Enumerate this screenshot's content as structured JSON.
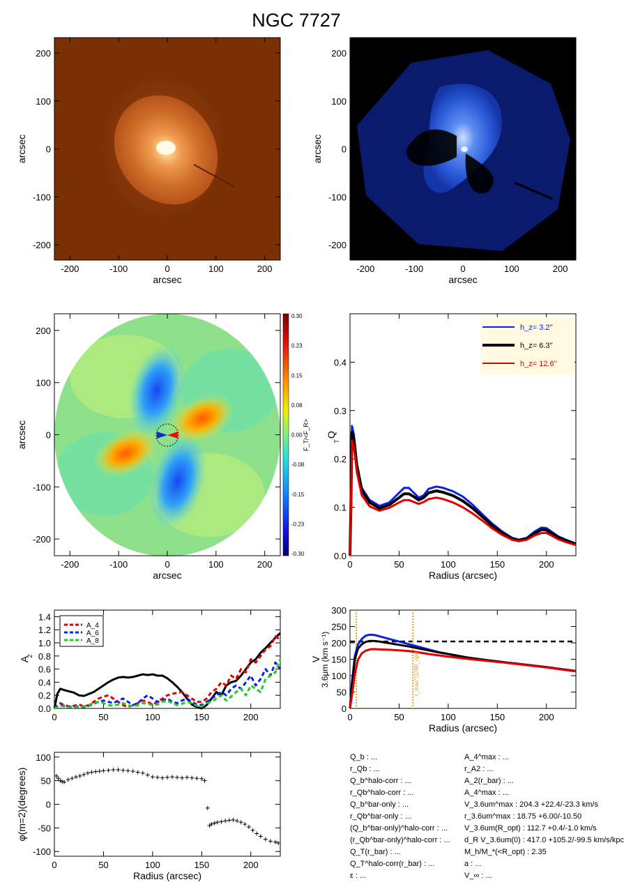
{
  "figure": {
    "title": "NGC 7727"
  },
  "chart_data": [
    {
      "panel": "image-3p6um",
      "type": "heatmap",
      "description": "3.6 micron image (orange colour map)",
      "xlabel": "arcsec",
      "ylabel": "arcsec",
      "xlim": [
        -232,
        232
      ],
      "ylim": [
        -232,
        232
      ],
      "xticks": [
        -200,
        -100,
        0,
        100,
        200
      ],
      "yticks": [
        -200,
        -100,
        0,
        100,
        200
      ],
      "colors": {
        "background": "#7a3003",
        "mid": "#c9611b",
        "core": "#fffbe8"
      }
    },
    {
      "panel": "image-residual",
      "type": "heatmap",
      "description": "residual image (blue colour map)",
      "xlabel": "arcsec",
      "ylabel": "arcsec",
      "xlim": [
        -232,
        232
      ],
      "ylim": [
        -232,
        232
      ],
      "xticks": [
        -200,
        -100,
        0,
        100,
        200
      ],
      "yticks": [
        -200,
        -100,
        0,
        100,
        200
      ],
      "colors": {
        "background": "#000000",
        "mid": "#0a2ba8",
        "core": "#c9dcff"
      }
    },
    {
      "panel": "force-ratio-map",
      "type": "heatmap",
      "xlabel": "arcsec",
      "ylabel": "arcsec",
      "xlim": [
        -232,
        232
      ],
      "ylim": [
        -232,
        232
      ],
      "xticks": [
        -200,
        -100,
        0,
        100,
        200
      ],
      "yticks": [
        -200,
        -100,
        0,
        100,
        200
      ],
      "colorbar": {
        "label": "F_T/<F_R>",
        "ticks": [
          "0.30",
          "0.23",
          "0.15",
          "0.08",
          "0.00",
          "-0.08",
          "-0.15",
          "-0.23",
          "-0.30"
        ]
      }
    },
    {
      "panel": "qt-profile",
      "type": "line",
      "xlabel": "Radius (arcsec)",
      "ylabel": "Q_T",
      "xlim": [
        0,
        230
      ],
      "ylim": [
        0,
        0.5
      ],
      "xticks": [
        0,
        50,
        100,
        150,
        200
      ],
      "yticks": [
        0.0,
        0.1,
        0.2,
        0.3,
        0.4
      ],
      "legend": "top-right",
      "legend_text": [
        "h_z=   3.2''",
        "h_z=   6.3''",
        "h_z=  12.6''"
      ],
      "x": [
        0,
        1,
        2,
        4,
        7,
        12,
        20,
        30,
        40,
        50,
        55,
        60,
        65,
        70,
        75,
        80,
        88,
        95,
        105,
        115,
        125,
        135,
        145,
        155,
        165,
        172,
        180,
        188,
        195,
        200,
        205,
        212,
        220,
        230
      ],
      "series": [
        {
          "name": "h_z=   3.2''",
          "color": "#0a20e8",
          "values": [
            0.0,
            0.12,
            0.268,
            0.25,
            0.19,
            0.14,
            0.115,
            0.103,
            0.11,
            0.13,
            0.14,
            0.14,
            0.13,
            0.12,
            0.125,
            0.138,
            0.143,
            0.14,
            0.133,
            0.122,
            0.105,
            0.085,
            0.066,
            0.05,
            0.037,
            0.033,
            0.037,
            0.05,
            0.058,
            0.057,
            0.05,
            0.04,
            0.033,
            0.025
          ]
        },
        {
          "name": "h_z=   6.3''",
          "color": "#000000",
          "values": [
            0.0,
            0.11,
            0.255,
            0.24,
            0.185,
            0.135,
            0.11,
            0.098,
            0.105,
            0.12,
            0.128,
            0.128,
            0.122,
            0.115,
            0.12,
            0.13,
            0.134,
            0.131,
            0.124,
            0.113,
            0.098,
            0.08,
            0.062,
            0.047,
            0.035,
            0.032,
            0.035,
            0.046,
            0.054,
            0.053,
            0.047,
            0.038,
            0.031,
            0.024
          ]
        },
        {
          "name": "h_z=  12.6''",
          "color": "#e00000",
          "values": [
            0.0,
            0.1,
            0.238,
            0.225,
            0.172,
            0.125,
            0.102,
            0.093,
            0.099,
            0.11,
            0.115,
            0.115,
            0.111,
            0.107,
            0.111,
            0.117,
            0.12,
            0.117,
            0.11,
            0.1,
            0.087,
            0.072,
            0.056,
            0.043,
            0.033,
            0.03,
            0.033,
            0.042,
            0.047,
            0.047,
            0.042,
            0.034,
            0.028,
            0.022
          ]
        }
      ]
    },
    {
      "panel": "fourier-amplitudes",
      "type": "line",
      "xlabel": "",
      "ylabel": "A_2",
      "xlim": [
        0,
        230
      ],
      "ylim": [
        0,
        1.5
      ],
      "xticks": [
        0,
        50,
        100,
        150,
        200
      ],
      "yticks": [
        0.0,
        0.2,
        0.4,
        0.6,
        0.8,
        1.0,
        1.2,
        1.4
      ],
      "legend": "top-left",
      "legend_text": [
        "A_4",
        "A_6",
        "A_8"
      ],
      "x": [
        0,
        3,
        6,
        10,
        15,
        20,
        25,
        30,
        35,
        40,
        45,
        50,
        55,
        60,
        65,
        70,
        75,
        80,
        85,
        90,
        95,
        100,
        105,
        110,
        115,
        120,
        125,
        130,
        135,
        140,
        145,
        150,
        155,
        160,
        165,
        170,
        175,
        180,
        185,
        190,
        195,
        200,
        205,
        210,
        215,
        220,
        225,
        230
      ],
      "series": [
        {
          "name": "A_2",
          "color": "#000000",
          "values": [
            0.0,
            0.22,
            0.3,
            0.28,
            0.26,
            0.24,
            0.2,
            0.19,
            0.22,
            0.25,
            0.3,
            0.35,
            0.4,
            0.44,
            0.47,
            0.48,
            0.47,
            0.48,
            0.5,
            0.52,
            0.51,
            0.52,
            0.5,
            0.5,
            0.46,
            0.4,
            0.33,
            0.25,
            0.15,
            0.06,
            0.02,
            0.0,
            0.05,
            0.15,
            0.25,
            0.2,
            0.35,
            0.4,
            0.42,
            0.5,
            0.6,
            0.7,
            0.75,
            0.85,
            0.92,
            1.0,
            1.08,
            1.15
          ]
        },
        {
          "name": "A_4",
          "color": "#e00000",
          "values": [
            0.0,
            0.05,
            0.08,
            0.05,
            0.03,
            0.04,
            0.06,
            0.03,
            0.05,
            0.1,
            0.15,
            0.18,
            0.2,
            0.15,
            0.1,
            0.05,
            0.02,
            0.05,
            0.08,
            0.12,
            0.1,
            0.06,
            0.1,
            0.15,
            0.2,
            0.22,
            0.24,
            0.25,
            0.2,
            0.15,
            0.1,
            0.1,
            0.15,
            0.25,
            0.3,
            0.4,
            0.35,
            0.5,
            0.45,
            0.6,
            0.55,
            0.75,
            0.7,
            0.8,
            0.9,
            0.95,
            1.1,
            1.05
          ]
        },
        {
          "name": "A_6",
          "color": "#0a20e8",
          "values": [
            0.0,
            0.03,
            0.05,
            0.04,
            0.03,
            0.02,
            0.03,
            0.02,
            0.04,
            0.07,
            0.1,
            0.12,
            0.1,
            0.08,
            0.12,
            0.15,
            0.1,
            0.05,
            0.08,
            0.15,
            0.2,
            0.15,
            0.1,
            0.12,
            0.15,
            0.1,
            0.08,
            0.12,
            0.15,
            0.1,
            0.06,
            0.05,
            0.1,
            0.15,
            0.2,
            0.25,
            0.2,
            0.3,
            0.35,
            0.3,
            0.4,
            0.5,
            0.35,
            0.45,
            0.6,
            0.5,
            0.7,
            0.6
          ]
        },
        {
          "name": "A_8",
          "color": "#22cc22",
          "values": [
            0.0,
            0.02,
            0.04,
            0.03,
            0.02,
            0.02,
            0.02,
            0.03,
            0.05,
            0.08,
            0.1,
            0.08,
            0.05,
            0.04,
            0.06,
            0.08,
            0.05,
            0.03,
            0.05,
            0.08,
            0.07,
            0.05,
            0.06,
            0.1,
            0.12,
            0.08,
            0.05,
            0.07,
            0.1,
            0.08,
            0.04,
            0.03,
            0.08,
            0.1,
            0.15,
            0.2,
            0.12,
            0.18,
            0.25,
            0.3,
            0.2,
            0.35,
            0.3,
            0.25,
            0.45,
            0.5,
            0.55,
            0.75
          ]
        }
      ]
    },
    {
      "panel": "rotation-curve",
      "type": "line",
      "xlabel": "Radius (arcsec)",
      "ylabel": "V_3.6um (km s^-1)",
      "xlim": [
        0,
        230
      ],
      "ylim": [
        0,
        300
      ],
      "xticks": [
        0,
        50,
        100,
        150,
        200
      ],
      "yticks": [
        0,
        50,
        100,
        150,
        200,
        250,
        300
      ],
      "hline": {
        "value": 204.3,
        "color": "#000000",
        "style": "dashed"
      },
      "vlines": [
        {
          "value": 6.5,
          "color": "#e8a020",
          "style": "dotted"
        },
        {
          "value": 64,
          "color": "#e8a020",
          "style": "dotted"
        }
      ],
      "annotation": "r_max^(1/4R_opt)",
      "x": [
        0,
        2,
        5,
        8,
        12,
        16,
        20,
        25,
        30,
        40,
        50,
        60,
        70,
        80,
        90,
        100,
        120,
        140,
        160,
        180,
        200,
        215,
        230
      ],
      "series": [
        {
          "name": "",
          "color": "#0a20e8",
          "values": [
            0,
            80,
            160,
            195,
            212,
            222,
            225,
            224,
            220,
            212,
            204,
            196,
            188,
            180,
            172,
            166,
            155,
            147,
            140,
            133,
            126,
            120,
            114
          ]
        },
        {
          "name": "",
          "color": "#000000",
          "values": [
            0,
            70,
            150,
            182,
            196,
            203,
            206,
            206,
            204,
            199,
            194,
            189,
            183,
            177,
            171,
            166,
            155,
            147,
            140,
            133,
            126,
            120,
            114
          ]
        },
        {
          "name": "",
          "color": "#e00000",
          "values": [
            0,
            40,
            105,
            148,
            168,
            176,
            180,
            181,
            180,
            179,
            177,
            175,
            171,
            166,
            162,
            158,
            151,
            145,
            139,
            132,
            125,
            119,
            113
          ]
        }
      ]
    },
    {
      "panel": "phase-profile",
      "type": "scatter",
      "xlabel": "Radius (arcsec)",
      "ylabel": "φ(m=2)(degrees)",
      "xlim": [
        0,
        230
      ],
      "ylim": [
        -110,
        110
      ],
      "xticks": [
        0,
        50,
        100,
        150,
        200
      ],
      "yticks": [
        -100,
        -50,
        0,
        50,
        100
      ],
      "marker": "+",
      "x": [
        2,
        4,
        6,
        8,
        10,
        14,
        18,
        22,
        26,
        30,
        34,
        38,
        42,
        46,
        50,
        55,
        60,
        65,
        70,
        75,
        80,
        85,
        90,
        95,
        100,
        105,
        110,
        115,
        120,
        125,
        130,
        135,
        140,
        145,
        150,
        153,
        156,
        158,
        160,
        163,
        166,
        170,
        174,
        178,
        182,
        186,
        190,
        194,
        198,
        202,
        206,
        210,
        215,
        220,
        225,
        228
      ],
      "values": [
        60,
        55,
        50,
        48,
        47,
        52,
        55,
        58,
        60,
        63,
        66,
        68,
        69,
        70,
        71,
        72,
        73,
        73,
        72,
        71,
        70,
        68,
        66,
        62,
        58,
        57,
        56,
        57,
        58,
        57,
        56,
        57,
        56,
        55,
        54,
        50,
        -8,
        -45,
        -42,
        -40,
        -38,
        -37,
        -35,
        -34,
        -33,
        -35,
        -38,
        -42,
        -48,
        -55,
        -62,
        -68,
        -74,
        -78,
        -80,
        -82
      ]
    }
  ],
  "parameters": {
    "left": [
      "Q_b : ...",
      "r_Qb : ...",
      "Q_b^halo-corr : ...",
      "r_Qb^halo-corr : ...",
      "Q_b^bar-only : ...",
      "r_Qb^bar-only : ...",
      "(Q_b^bar-only)^halo-corr : ...",
      "(r_Qb^bar-only)^halo-corr : ...",
      "Q_T(r_bar) : ...",
      "Q_T^halo-corr(r_bar) : ...",
      "ε : ..."
    ],
    "right": [
      "A_4^max : ...",
      "r_A2 : ...",
      "A_2(r_bar) : ...",
      "A_4^max : ...",
      "V_3.6um^max : 204.3 +22.4/-23.3 km/s",
      "r_3.6um^max : 18.75 +6.00/-10.50",
      "V_3.6um(R_opt) : 112.7 +0.4/-1.0 km/s",
      "d_R V_3.6um(0) : 417.0 +105.2/-99.5 km/s/kpc",
      "M_h/M_*(<R_opt) : 2.35",
      "a : ...",
      "V_∞ : ..."
    ]
  }
}
